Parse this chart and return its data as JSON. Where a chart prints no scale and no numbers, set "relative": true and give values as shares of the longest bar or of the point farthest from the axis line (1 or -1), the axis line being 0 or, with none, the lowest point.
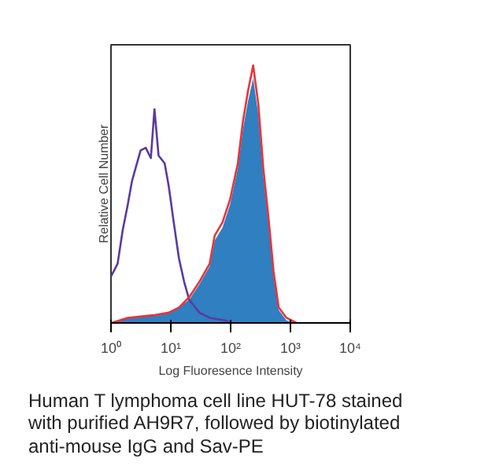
{
  "chart_data": {
    "type": "area",
    "relative": true,
    "log": "x",
    "xlabel": "Log Fluoresence Intensity",
    "ylabel": "Relative Cell Number",
    "xlim": [
      1,
      10000
    ],
    "xticks": [
      {
        "value": 1,
        "label": "10⁰"
      },
      {
        "value": 10,
        "label": "10¹"
      },
      {
        "value": 100,
        "label": "10²"
      },
      {
        "value": 1000,
        "label": "10³"
      },
      {
        "value": 10000,
        "label": "10⁴"
      }
    ],
    "annotations": [
      "Human T lymphoma cell line HUT-78 stained with purified AH9R7, followed by biotinylated anti-mouse IgG and Sav-PE"
    ],
    "grid": false,
    "series": [
      {
        "type": "line",
        "color": "#5b3a9e",
        "x": [
          1,
          1.29,
          1.57,
          1.91,
          2.24,
          2.57,
          3.13,
          3.81,
          4.64,
          5.33,
          6.24,
          7.89,
          9.25,
          11.2,
          13.7,
          16.7,
          20.3,
          30.1,
          44.6,
          80.5,
          98
        ],
        "values": [
          0.18,
          0.23,
          0.36,
          0.46,
          0.55,
          0.6,
          0.67,
          0.68,
          0.64,
          0.83,
          0.65,
          0.62,
          0.53,
          0.39,
          0.25,
          0.16,
          0.09,
          0.04,
          0.02,
          0.01,
          0
        ]
      },
      {
        "color": "#2f7fc1",
        "x": [
          1,
          1.91,
          5.12,
          9.25,
          13.7,
          20.3,
          30.1,
          44.6,
          54.3,
          73,
          98,
          132,
          160,
          195,
          238,
          290,
          352,
          429,
          522,
          636,
          855,
          1267
        ],
        "values": [
          0,
          0.02,
          0.03,
          0.04,
          0.06,
          0.09,
          0.15,
          0.22,
          0.32,
          0.37,
          0.46,
          0.6,
          0.75,
          0.86,
          0.95,
          0.81,
          0.57,
          0.39,
          0.18,
          0.05,
          0.01,
          0
        ]
      },
      {
        "type": "line",
        "color": "#e8343a",
        "x": [
          1,
          1.91,
          5.12,
          9.25,
          13.7,
          20.3,
          30.1,
          44.6,
          54.3,
          73,
          98,
          132,
          160,
          195,
          238,
          290,
          352,
          429,
          522,
          636,
          855,
          1267
        ],
        "values": [
          0,
          0.02,
          0.03,
          0.04,
          0.06,
          0.1,
          0.16,
          0.23,
          0.34,
          0.39,
          0.48,
          0.62,
          0.78,
          0.9,
          1,
          0.85,
          0.6,
          0.41,
          0.2,
          0.06,
          0.02,
          0
        ]
      }
    ]
  }
}
